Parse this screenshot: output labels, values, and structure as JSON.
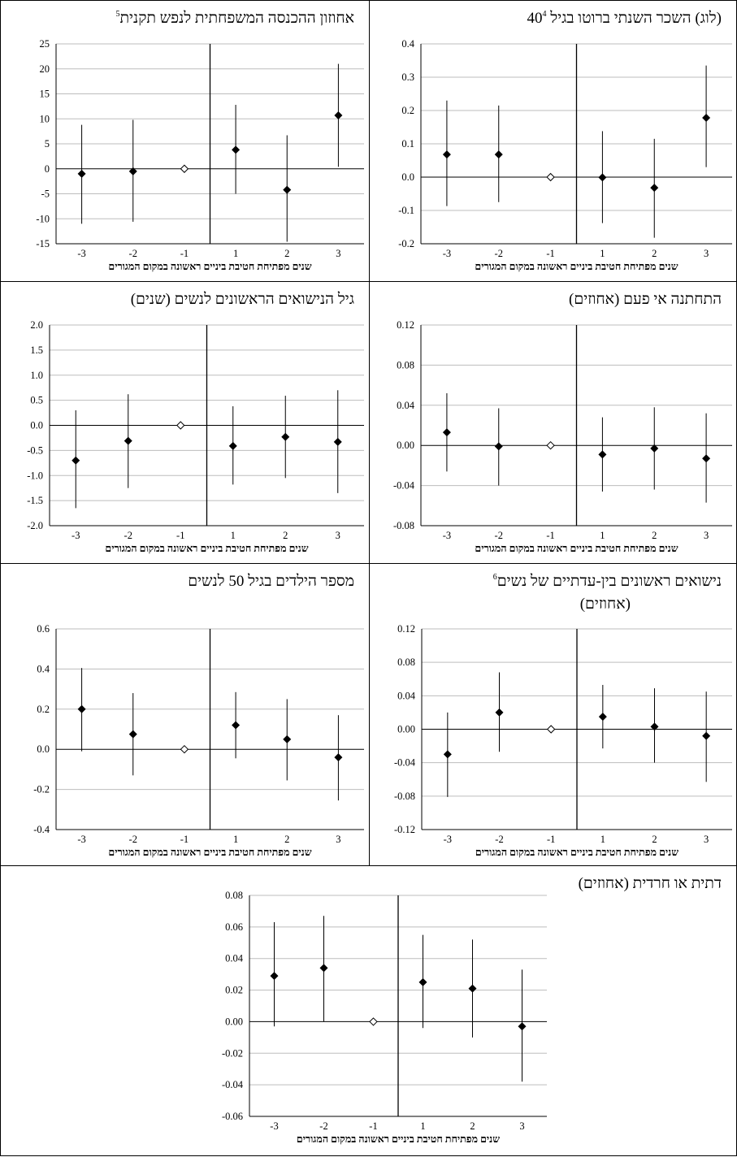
{
  "x_caption": "שנים מפתיחת חטיבת ביניים ראשונה במקום המגורים",
  "panels": [
    {
      "id": "income",
      "title": "אחוזון ההכנסה המשפחתית לנפש תקנית",
      "footnote": "5",
      "chart_data": {
        "type": "scatter",
        "categories": [
          "-3",
          "-2",
          "-1",
          "1",
          "2",
          "3"
        ],
        "ylim": [
          -15,
          25
        ],
        "yticks": [
          "-15",
          "-10",
          "-5",
          "0",
          "5",
          "10",
          "15",
          "20",
          "25"
        ],
        "points": [
          {
            "x": "-3",
            "y": -1.0,
            "low": -11.0,
            "high": 8.8
          },
          {
            "x": "-2",
            "y": -0.5,
            "low": -10.6,
            "high": 9.8
          },
          {
            "x": "-1",
            "y": 0.0,
            "reference": true
          },
          {
            "x": "1",
            "y": 3.8,
            "low": -5.0,
            "high": 12.8
          },
          {
            "x": "2",
            "y": -4.2,
            "low": -14.6,
            "high": 6.7
          },
          {
            "x": "3",
            "y": 10.7,
            "low": 0.4,
            "high": 21.0
          }
        ]
      }
    },
    {
      "id": "wage",
      "title": "(לוג) השכר השנתי ברוטו בגיל 40",
      "footnote": "4",
      "chart_data": {
        "type": "scatter",
        "categories": [
          "-3",
          "-2",
          "-1",
          "1",
          "2",
          "3"
        ],
        "ylim": [
          -0.2,
          0.4
        ],
        "yticks": [
          "-0.2",
          "-0.1",
          "0.0",
          "0.1",
          "0.2",
          "0.3",
          "0.4"
        ],
        "points": [
          {
            "x": "-3",
            "y": 0.068,
            "low": -0.087,
            "high": 0.23
          },
          {
            "x": "-2",
            "y": 0.068,
            "low": -0.075,
            "high": 0.215
          },
          {
            "x": "-1",
            "y": 0.0,
            "reference": true
          },
          {
            "x": "1",
            "y": -0.001,
            "low": -0.138,
            "high": 0.138
          },
          {
            "x": "2",
            "y": -0.032,
            "low": -0.182,
            "high": 0.115
          },
          {
            "x": "3",
            "y": 0.178,
            "low": 0.03,
            "high": 0.335
          }
        ]
      }
    },
    {
      "id": "marriage_age",
      "title": "גיל הנישואים הראשונים לנשים (שנים)",
      "footnote": "",
      "chart_data": {
        "type": "scatter",
        "categories": [
          "-3",
          "-2",
          "-1",
          "1",
          "2",
          "3"
        ],
        "ylim": [
          -2.0,
          2.0
        ],
        "yticks": [
          "-2.0",
          "-1.5",
          "-1.0",
          "-0.5",
          "0.0",
          "0.5",
          "1.0",
          "1.5",
          "2.0"
        ],
        "points": [
          {
            "x": "-3",
            "y": -0.7,
            "low": -1.65,
            "high": 0.3
          },
          {
            "x": "-2",
            "y": -0.31,
            "low": -1.25,
            "high": 0.62
          },
          {
            "x": "-1",
            "y": 0.0,
            "reference": true
          },
          {
            "x": "1",
            "y": -0.41,
            "low": -1.18,
            "high": 0.38
          },
          {
            "x": "2",
            "y": -0.23,
            "low": -1.05,
            "high": 0.59
          },
          {
            "x": "3",
            "y": -0.33,
            "low": -1.35,
            "high": 0.7
          }
        ]
      }
    },
    {
      "id": "ever_married",
      "title": "התחתנה אי פעם (אחוזים)",
      "footnote": "",
      "chart_data": {
        "type": "scatter",
        "categories": [
          "-3",
          "-2",
          "-1",
          "1",
          "2",
          "3"
        ],
        "ylim": [
          -0.08,
          0.12
        ],
        "yticks": [
          "-0.08",
          "-0.04",
          "0.00",
          "0.04",
          "0.08",
          "0.12"
        ],
        "points": [
          {
            "x": "-3",
            "y": 0.013,
            "low": -0.026,
            "high": 0.052
          },
          {
            "x": "-2",
            "y": -0.001,
            "low": -0.04,
            "high": 0.037
          },
          {
            "x": "-1",
            "y": 0.0,
            "reference": true
          },
          {
            "x": "1",
            "y": -0.009,
            "low": -0.046,
            "high": 0.028
          },
          {
            "x": "2",
            "y": -0.003,
            "low": -0.044,
            "high": 0.038
          },
          {
            "x": "3",
            "y": -0.013,
            "low": -0.057,
            "high": 0.032
          }
        ]
      }
    },
    {
      "id": "children",
      "title": "מספר הילדים בגיל 50 לנשים",
      "footnote": "",
      "chart_data": {
        "type": "scatter",
        "categories": [
          "-3",
          "-2",
          "-1",
          "1",
          "2",
          "3"
        ],
        "ylim": [
          -0.4,
          0.6
        ],
        "yticks": [
          "-0.4",
          "-0.2",
          "0.0",
          "0.2",
          "0.4",
          "0.6"
        ],
        "points": [
          {
            "x": "-3",
            "y": 0.2,
            "low": -0.01,
            "high": 0.405
          },
          {
            "x": "-2",
            "y": 0.075,
            "low": -0.13,
            "high": 0.28
          },
          {
            "x": "-1",
            "y": 0.0,
            "reference": true
          },
          {
            "x": "1",
            "y": 0.12,
            "low": -0.045,
            "high": 0.285
          },
          {
            "x": "2",
            "y": 0.05,
            "low": -0.155,
            "high": 0.25
          },
          {
            "x": "3",
            "y": -0.04,
            "low": -0.255,
            "high": 0.17
          }
        ]
      }
    },
    {
      "id": "inter_ethnic",
      "title": "נישואים ראשונים בין-עדתיים של נשים",
      "title2": "(אחוזים)",
      "footnote": "6",
      "chart_data": {
        "type": "scatter",
        "categories": [
          "-3",
          "-2",
          "-1",
          "1",
          "2",
          "3"
        ],
        "ylim": [
          -0.12,
          0.12
        ],
        "yticks": [
          "-0.12",
          "-0.08",
          "-0.04",
          "0.00",
          "0.04",
          "0.08",
          "0.12"
        ],
        "points": [
          {
            "x": "-3",
            "y": -0.03,
            "low": -0.081,
            "high": 0.02
          },
          {
            "x": "-2",
            "y": 0.02,
            "low": -0.027,
            "high": 0.068
          },
          {
            "x": "-1",
            "y": 0.0,
            "reference": true
          },
          {
            "x": "1",
            "y": 0.015,
            "low": -0.023,
            "high": 0.053
          },
          {
            "x": "2",
            "y": 0.003,
            "low": -0.04,
            "high": 0.049
          },
          {
            "x": "3",
            "y": -0.008,
            "low": -0.063,
            "high": 0.045
          }
        ]
      }
    },
    {
      "id": "religious",
      "title": "דתית או חרדית (אחוזים)",
      "footnote": "",
      "chart_data": {
        "type": "scatter",
        "categories": [
          "-3",
          "-2",
          "-1",
          "1",
          "2",
          "3"
        ],
        "ylim": [
          -0.06,
          0.08
        ],
        "yticks": [
          "-0.06",
          "-0.04",
          "-0.02",
          "0.00",
          "0.02",
          "0.04",
          "0.06",
          "0.08"
        ],
        "points": [
          {
            "x": "-3",
            "y": 0.029,
            "low": -0.003,
            "high": 0.063
          },
          {
            "x": "-2",
            "y": 0.034,
            "low": 0.0,
            "high": 0.067
          },
          {
            "x": "-1",
            "y": 0.0,
            "reference": true
          },
          {
            "x": "1",
            "y": 0.025,
            "low": -0.004,
            "high": 0.055
          },
          {
            "x": "2",
            "y": 0.021,
            "low": -0.01,
            "high": 0.052
          },
          {
            "x": "3",
            "y": -0.003,
            "low": -0.038,
            "high": 0.033
          }
        ]
      }
    }
  ]
}
